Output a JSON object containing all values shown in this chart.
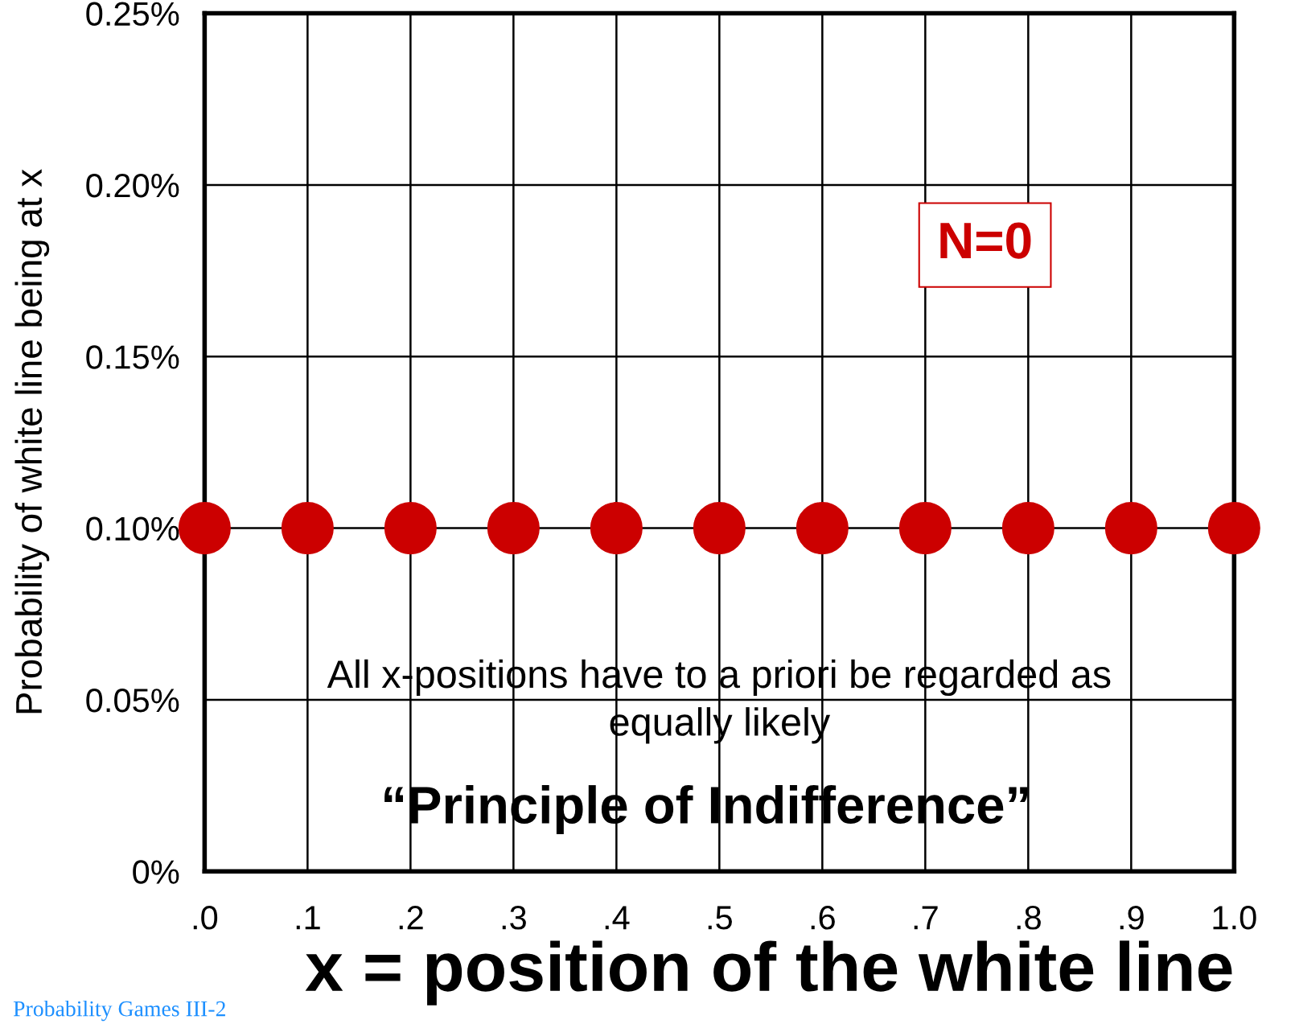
{
  "chart_data": {
    "type": "scatter",
    "xlabel": "x = position of the white line",
    "ylabel": "Probability of white line being at x",
    "x": [
      0.0,
      0.1,
      0.2,
      0.3,
      0.4,
      0.5,
      0.6,
      0.7,
      0.8,
      0.9,
      1.0
    ],
    "series": [
      {
        "color": "#cc0000",
        "values": [
          0.1,
          0.1,
          0.1,
          0.1,
          0.1,
          0.1,
          0.1,
          0.1,
          0.1,
          0.1,
          0.1
        ]
      }
    ],
    "marker": "circle",
    "xlim": [
      0,
      1.0
    ],
    "xticks": [
      {
        "value": 0,
        "label": ".0"
      },
      {
        "value": 0.1,
        "label": ".1"
      },
      {
        "value": 0.2,
        "label": ".2"
      },
      {
        "value": 0.3,
        "label": ".3"
      },
      {
        "value": 0.4,
        "label": ".4"
      },
      {
        "value": 0.5,
        "label": ".5"
      },
      {
        "value": 0.6,
        "label": ".6"
      },
      {
        "value": 0.7,
        "label": ".7"
      },
      {
        "value": 0.8,
        "label": ".8"
      },
      {
        "value": 0.9,
        "label": ".9"
      },
      {
        "value": 1.0,
        "label": "1.0"
      }
    ],
    "ylim": [
      0,
      0.25
    ],
    "yticks": [
      {
        "value": 0,
        "label": "0%"
      },
      {
        "value": 0.05,
        "label": "0.05%"
      },
      {
        "value": 0.1,
        "label": "0.10%"
      },
      {
        "value": 0.15,
        "label": "0.15%"
      },
      {
        "value": 0.2,
        "label": "0.20%"
      },
      {
        "value": 0.25,
        "label": "0.25%"
      }
    ],
    "grid": true,
    "legend": false,
    "annotations": [
      "N=0",
      "All x-positions have to a priori be regarded as\nequally likely",
      "“Principle of Indifference”",
      "Probability Games III-2"
    ]
  }
}
